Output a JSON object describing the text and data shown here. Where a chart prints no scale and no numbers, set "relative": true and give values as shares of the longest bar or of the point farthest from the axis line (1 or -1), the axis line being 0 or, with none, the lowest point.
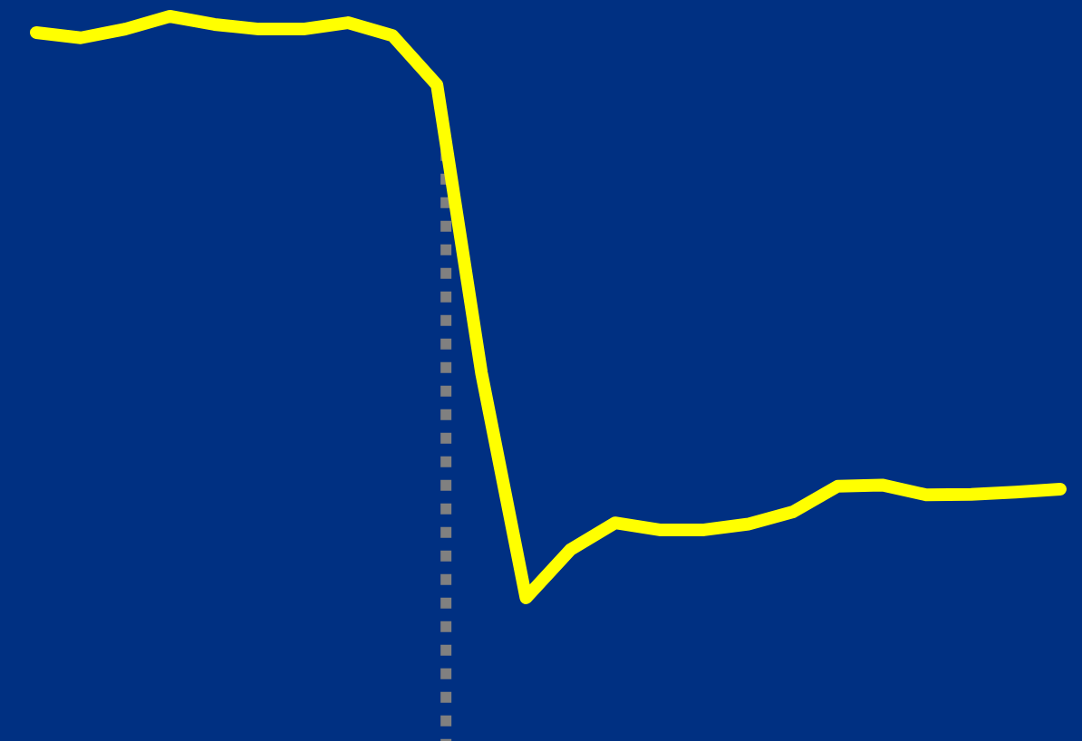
{
  "chart_data": {
    "type": "line",
    "relative": true,
    "categories": [
      null,
      null,
      null,
      null,
      null,
      null,
      null,
      null,
      null,
      null,
      null,
      null,
      null,
      null,
      null,
      null,
      null,
      null,
      null,
      null,
      null,
      null,
      null,
      null
    ],
    "series": [
      {
        "color": "#ffff00",
        "values": [
          0.972,
          0.963,
          0.978,
          1,
          0.986,
          0.978,
          0.978,
          0.989,
          0.967,
          0.882,
          0.387,
          0,
          0.083,
          0.129,
          0.117,
          0.117,
          0.127,
          0.148,
          0.192,
          0.194,
          0.177,
          0.178,
          0.182,
          0.187
        ]
      }
    ],
    "line_style": "solid"
  }
}
